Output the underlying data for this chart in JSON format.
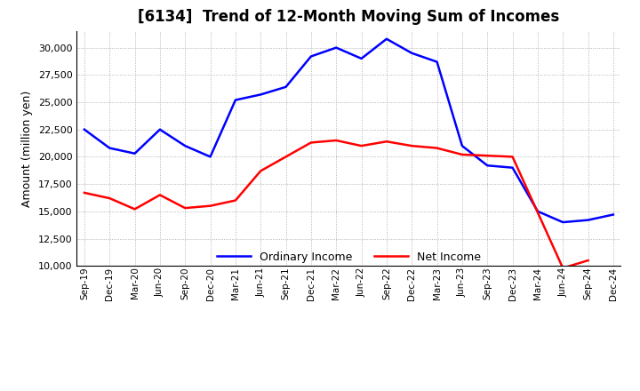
{
  "title": "[6134]  Trend of 12-Month Moving Sum of Incomes",
  "ylabel": "Amount (million yen)",
  "ylim": [
    10000,
    31500
  ],
  "yticks": [
    10000,
    12500,
    15000,
    17500,
    20000,
    22500,
    25000,
    27500,
    30000
  ],
  "labels": [
    "Sep-19",
    "Dec-19",
    "Mar-20",
    "Jun-20",
    "Sep-20",
    "Dec-20",
    "Mar-21",
    "Jun-21",
    "Sep-21",
    "Dec-21",
    "Mar-22",
    "Jun-22",
    "Sep-22",
    "Dec-22",
    "Mar-23",
    "Jun-23",
    "Sep-23",
    "Dec-23",
    "Mar-24",
    "Jun-24",
    "Sep-24",
    "Dec-24"
  ],
  "ordinary_income": [
    22500,
    20800,
    20300,
    22500,
    21000,
    20000,
    25200,
    25700,
    26400,
    29200,
    30000,
    29000,
    30800,
    29500,
    28700,
    21000,
    19200,
    19000,
    15000,
    14000,
    14200,
    14700
  ],
  "net_income": [
    16700,
    16200,
    15200,
    16500,
    15300,
    15500,
    16000,
    18700,
    20000,
    21300,
    21500,
    21000,
    21400,
    21000,
    20800,
    20200,
    20100,
    20000,
    14900,
    9800,
    10500,
    null
  ],
  "ordinary_color": "#0000FF",
  "net_color": "#FF0000",
  "bg_color": "#FFFFFF",
  "plot_bg_color": "#FFFFFF",
  "grid_color": "#999999",
  "legend_ordinary": "Ordinary Income",
  "legend_net": "Net Income"
}
